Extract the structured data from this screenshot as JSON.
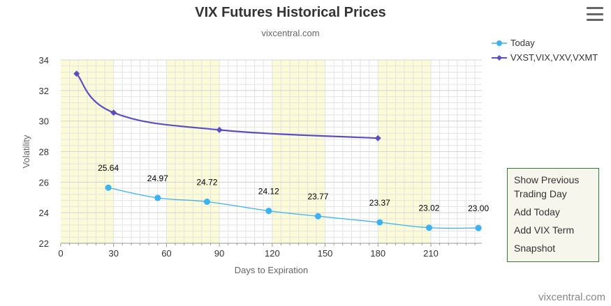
{
  "chart_data": {
    "type": "line",
    "title": "VIX Futures Historical Prices",
    "subtitle": "vixcentral.com",
    "xlabel": "Days to Expiration",
    "ylabel": "Volatility",
    "xlim": [
      0,
      200
    ],
    "ylim": [
      22,
      34
    ],
    "x_ticks": [
      0,
      30,
      60,
      90,
      120,
      150,
      180,
      210
    ],
    "y_ticks": [
      22,
      24,
      26,
      28,
      30,
      32,
      34
    ],
    "grid": true,
    "legend_position": "top-right",
    "bands": [
      [
        0,
        30
      ],
      [
        60,
        90
      ],
      [
        120,
        150
      ],
      [
        180,
        210
      ]
    ],
    "series": [
      {
        "name": "Today",
        "color": "#3bb3f0",
        "marker": "circle",
        "points": [
          {
            "x": 27,
            "y": 25.64,
            "label": "25.64"
          },
          {
            "x": 55,
            "y": 24.97,
            "label": "24.97"
          },
          {
            "x": 83,
            "y": 24.72,
            "label": "24.72"
          },
          {
            "x": 118,
            "y": 24.12,
            "label": "24.12"
          },
          {
            "x": 146,
            "y": 23.77,
            "label": "23.77"
          },
          {
            "x": 181,
            "y": 23.37,
            "label": "23.37"
          },
          {
            "x": 209,
            "y": 23.02,
            "label": "23.02"
          },
          {
            "x": 237,
            "y": 23.0,
            "label": "23.00"
          }
        ]
      },
      {
        "name": "VXST,VIX,VXV,VXMT",
        "color": "#5b4fc0",
        "marker": "diamond",
        "points": [
          {
            "x": 9,
            "y": 33.1
          },
          {
            "x": 30,
            "y": 30.55
          },
          {
            "x": 90,
            "y": 29.42
          },
          {
            "x": 180,
            "y": 28.88
          }
        ]
      }
    ]
  },
  "side_panel": {
    "items": [
      "Show Previous Trading Day",
      "Add Today",
      "Add VIX Term",
      "Snapshot"
    ]
  },
  "watermark": "vixcentral.com",
  "colors": {
    "band": "#fbfbd8",
    "panel_border": "#2e7d32",
    "panel_bg": "#f6f6ec"
  },
  "icons": {
    "menu": "hamburger-menu-icon"
  }
}
